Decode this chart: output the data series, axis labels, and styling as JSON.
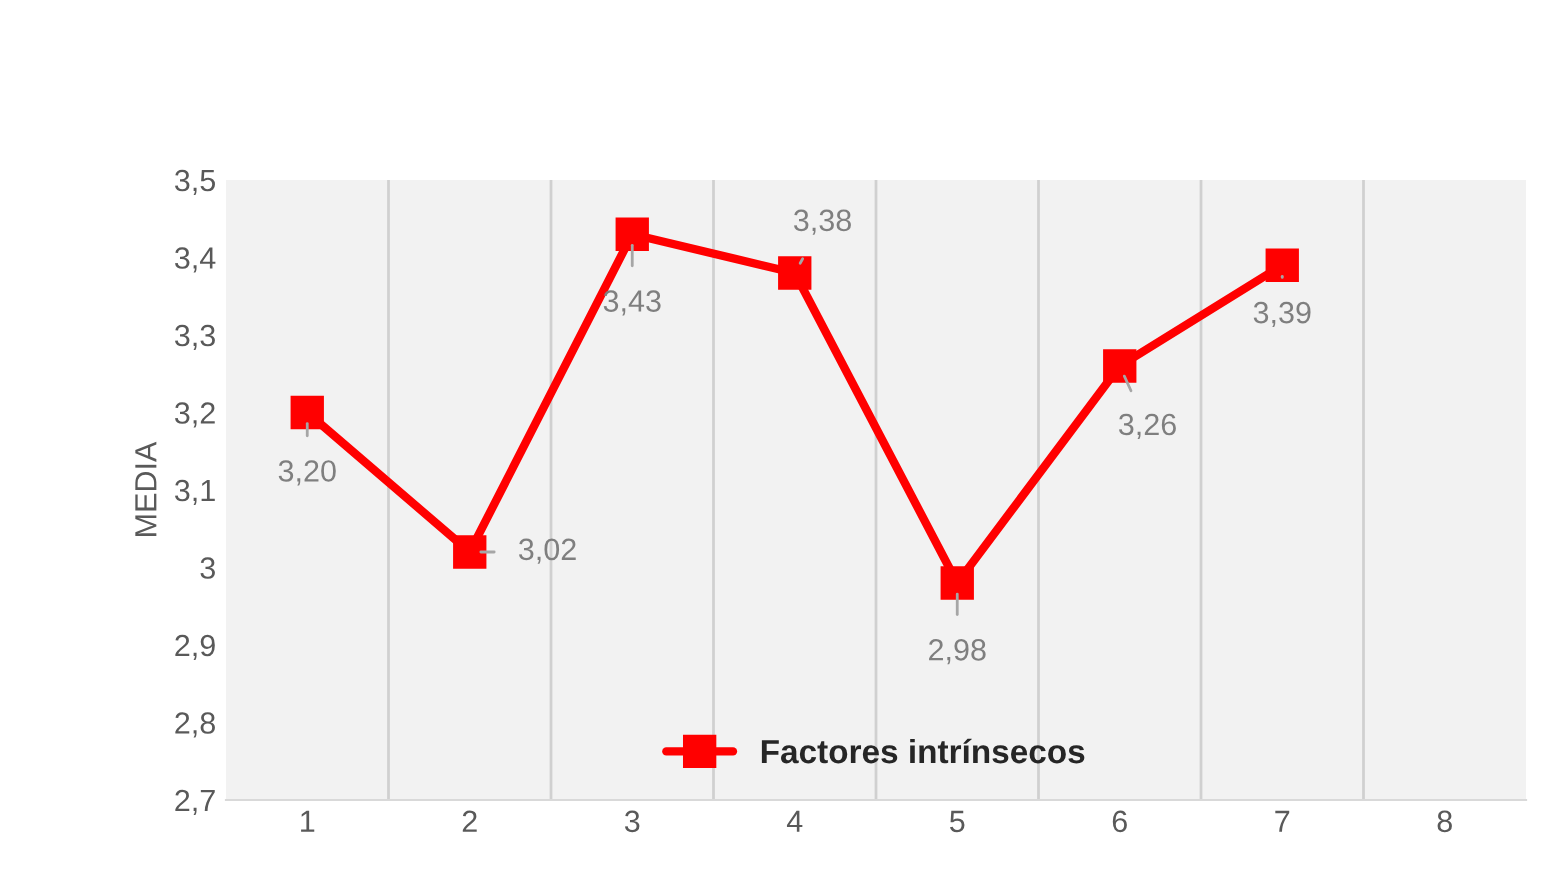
{
  "chart_data": {
    "type": "line",
    "ylabel": "MEDIA",
    "categories": [
      "1",
      "2",
      "3",
      "4",
      "5",
      "6",
      "7",
      "8"
    ],
    "series": [
      {
        "name": "Factores intrínsecos",
        "color": "#ff0000",
        "values": [
          3.2,
          3.02,
          3.43,
          3.38,
          2.98,
          3.26,
          3.39,
          null
        ],
        "value_labels": [
          "3,20",
          "3,02",
          "3,43",
          "3,38",
          "2,98",
          "3,26",
          "3,39",
          null
        ]
      }
    ],
    "ylim": [
      2.7,
      3.5
    ],
    "yticks": [
      {
        "value": 2.7,
        "label": "2,7"
      },
      {
        "value": 2.8,
        "label": "2,8"
      },
      {
        "value": 2.9,
        "label": "2,9"
      },
      3,
      {
        "value": 3.1,
        "label": "3,1"
      },
      {
        "value": 3.2,
        "label": "3,2"
      },
      {
        "value": 3.3,
        "label": "3,3"
      },
      {
        "value": 3.4,
        "label": "3,4"
      },
      {
        "value": 3.5,
        "label": "3,5"
      }
    ],
    "grid": "x",
    "legend": "bottom",
    "marker": "square",
    "line_style": "solid"
  }
}
